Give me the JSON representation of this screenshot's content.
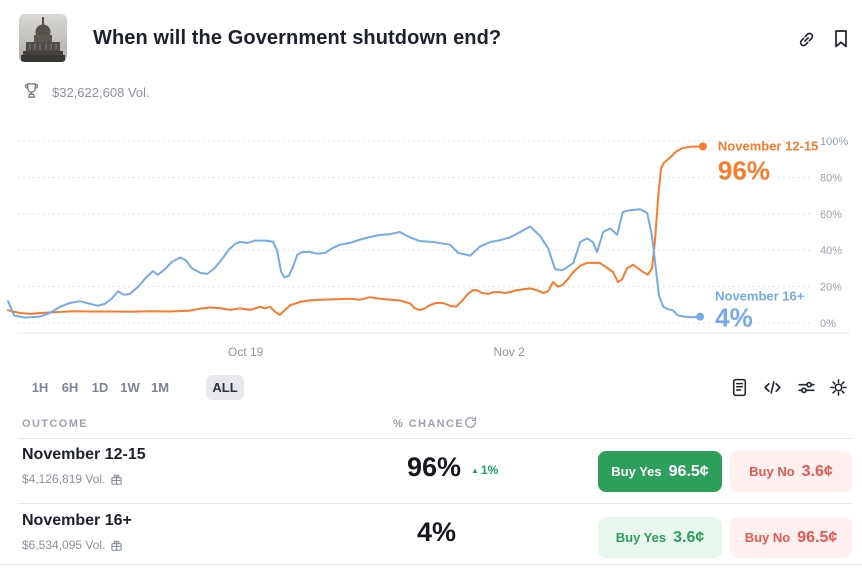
{
  "header": {
    "title": "When will the Government shutdown end?",
    "volume": "$32,622,608 Vol.",
    "market_icon": "us-capitol-thumbnail"
  },
  "chart_data": {
    "type": "line",
    "title": "",
    "xlabel": "",
    "ylabel": "% chance",
    "ylim": [
      0,
      100
    ],
    "grid": "dotted-horizontal",
    "legend_position": "line-end-labels-right",
    "yticks": [
      "0%",
      "20%",
      "40%",
      "60%",
      "80%",
      "100%"
    ],
    "xticks": [
      {
        "label": "Oct 19",
        "pos": 34.1
      },
      {
        "label": "Nov 2",
        "pos": 71.9
      }
    ],
    "series": [
      {
        "name": "November 12-15",
        "current": "96%",
        "color": "#f97b2b",
        "points": [
          [
            0,
            7
          ],
          [
            1.7,
            5.5
          ],
          [
            3.2,
            5
          ],
          [
            4.6,
            5.5
          ],
          [
            6.7,
            6
          ],
          [
            9.6,
            6.5
          ],
          [
            11.8,
            6.3
          ],
          [
            14.6,
            6.3
          ],
          [
            17.5,
            6.2
          ],
          [
            20.4,
            6.5
          ],
          [
            23.2,
            6.3
          ],
          [
            26.1,
            6.8
          ],
          [
            27.5,
            7.8
          ],
          [
            29,
            8.5
          ],
          [
            30.4,
            8.2
          ],
          [
            31.9,
            7.2
          ],
          [
            33.3,
            8
          ],
          [
            34.7,
            7.2
          ],
          [
            36.2,
            8.9
          ],
          [
            36.9,
            8
          ],
          [
            37.6,
            8.9
          ],
          [
            38.3,
            6.2
          ],
          [
            39,
            4.4
          ],
          [
            39.7,
            7.1
          ],
          [
            40.5,
            9.8
          ],
          [
            41.9,
            11.6
          ],
          [
            43.3,
            12.4
          ],
          [
            44.8,
            12.8
          ],
          [
            46.9,
            13
          ],
          [
            49.1,
            13.3
          ],
          [
            50.5,
            12.8
          ],
          [
            51.9,
            14.2
          ],
          [
            53.4,
            13.3
          ],
          [
            54.8,
            12.8
          ],
          [
            56.2,
            12.4
          ],
          [
            57.7,
            10.7
          ],
          [
            58.4,
            8
          ],
          [
            59.1,
            7.1
          ],
          [
            59.8,
            8
          ],
          [
            60.5,
            9.8
          ],
          [
            61.4,
            11
          ],
          [
            62.4,
            11
          ],
          [
            63.4,
            9.5
          ],
          [
            64.3,
            9
          ],
          [
            65.1,
            12
          ],
          [
            66,
            16
          ],
          [
            66.7,
            18
          ],
          [
            67.3,
            18
          ],
          [
            68,
            16.5
          ],
          [
            68.9,
            16
          ],
          [
            69.7,
            17
          ],
          [
            70.6,
            17
          ],
          [
            71.3,
            16.5
          ],
          [
            72,
            17
          ],
          [
            73,
            18
          ],
          [
            74,
            18.5
          ],
          [
            74.9,
            19
          ],
          [
            75.9,
            18
          ],
          [
            76.8,
            16.5
          ],
          [
            77.5,
            17.5
          ],
          [
            78.2,
            22.5
          ],
          [
            78.9,
            20
          ],
          [
            79.6,
            21
          ],
          [
            80.3,
            24
          ],
          [
            81.1,
            28
          ],
          [
            82.1,
            31.5
          ],
          [
            83.1,
            33
          ],
          [
            84.2,
            33
          ],
          [
            84.9,
            33
          ],
          [
            85.9,
            30.5
          ],
          [
            86.8,
            28
          ],
          [
            87.5,
            22.5
          ],
          [
            88.1,
            24
          ],
          [
            88.8,
            30
          ],
          [
            89.7,
            32
          ],
          [
            90.4,
            30
          ],
          [
            91.1,
            28
          ],
          [
            91.8,
            26.5
          ],
          [
            92.4,
            30
          ],
          [
            92.8,
            44
          ],
          [
            93.3,
            70
          ],
          [
            93.7,
            85
          ],
          [
            94.1,
            88
          ],
          [
            94.7,
            90
          ],
          [
            95.3,
            92
          ],
          [
            95.8,
            94
          ],
          [
            96.7,
            96
          ],
          [
            97.8,
            96.8
          ],
          [
            99.7,
            97
          ]
        ]
      },
      {
        "name": "November 16+",
        "current": "4%",
        "color": "#77aae8",
        "points": [
          [
            0,
            12
          ],
          [
            0.9,
            4
          ],
          [
            2.4,
            3
          ],
          [
            4.6,
            3.5
          ],
          [
            6,
            5.5
          ],
          [
            7.5,
            9
          ],
          [
            8.9,
            11
          ],
          [
            10.3,
            12
          ],
          [
            11.8,
            10.5
          ],
          [
            12.9,
            9.5
          ],
          [
            13.9,
            10.5
          ],
          [
            14.9,
            13.5
          ],
          [
            15.8,
            17.5
          ],
          [
            16.6,
            15.5
          ],
          [
            17.5,
            16
          ],
          [
            18.7,
            20
          ],
          [
            19.8,
            25
          ],
          [
            20.8,
            28.5
          ],
          [
            21.5,
            26.5
          ],
          [
            22.5,
            29.5
          ],
          [
            23.5,
            33.5
          ],
          [
            24.7,
            36
          ],
          [
            25.5,
            34.5
          ],
          [
            26.4,
            30
          ],
          [
            27.6,
            27.5
          ],
          [
            28.6,
            27
          ],
          [
            29.6,
            30
          ],
          [
            30.6,
            34.5
          ],
          [
            31.6,
            40
          ],
          [
            32.6,
            43.5
          ],
          [
            33.3,
            44.5
          ],
          [
            34.4,
            44
          ],
          [
            35.4,
            45.3
          ],
          [
            36.9,
            45.3
          ],
          [
            38,
            44.7
          ],
          [
            38.6,
            40
          ],
          [
            39.2,
            28
          ],
          [
            39.7,
            25
          ],
          [
            40.3,
            26
          ],
          [
            40.9,
            31
          ],
          [
            41.5,
            37.5
          ],
          [
            42.2,
            39
          ],
          [
            43.3,
            39
          ],
          [
            44.5,
            38
          ],
          [
            45.5,
            38.5
          ],
          [
            46.5,
            41
          ],
          [
            47.6,
            43
          ],
          [
            49.1,
            44
          ],
          [
            50.5,
            45.8
          ],
          [
            51.9,
            47.2
          ],
          [
            53.4,
            48.4
          ],
          [
            54.8,
            48.8
          ],
          [
            56.2,
            50
          ],
          [
            57.7,
            47
          ],
          [
            59.1,
            45
          ],
          [
            61,
            44.5
          ],
          [
            63.4,
            43
          ],
          [
            64.6,
            38.5
          ],
          [
            66.3,
            37
          ],
          [
            67.7,
            42
          ],
          [
            69.2,
            44.5
          ],
          [
            70.6,
            45.5
          ],
          [
            72,
            47
          ],
          [
            73.5,
            50
          ],
          [
            74.9,
            53
          ],
          [
            76.3,
            48
          ],
          [
            77.5,
            41
          ],
          [
            78.5,
            29.5
          ],
          [
            79.6,
            29
          ],
          [
            81.1,
            33
          ],
          [
            82.1,
            44.5
          ],
          [
            83.1,
            46.5
          ],
          [
            83.9,
            44.5
          ],
          [
            84.5,
            39
          ],
          [
            85.4,
            50
          ],
          [
            86.4,
            52
          ],
          [
            87.4,
            48.5
          ],
          [
            88.2,
            61
          ],
          [
            89.2,
            62
          ],
          [
            90.7,
            62.5
          ],
          [
            91.7,
            60.5
          ],
          [
            92.4,
            48
          ],
          [
            93,
            28
          ],
          [
            93.4,
            15
          ],
          [
            94,
            9
          ],
          [
            94.7,
            7.5
          ],
          [
            95.4,
            7
          ],
          [
            96.1,
            4.2
          ],
          [
            97.1,
            3.4
          ],
          [
            98.3,
            3.2
          ],
          [
            99.3,
            3.5
          ]
        ]
      }
    ]
  },
  "timeframes": {
    "options": [
      "1H",
      "6H",
      "1D",
      "1W",
      "1M",
      "ALL"
    ],
    "selected": "ALL"
  },
  "chart_tools": [
    "document-icon",
    "embed-code-icon",
    "sliders-icon",
    "gear-icon"
  ],
  "table": {
    "outcome_header": "OUTCOME",
    "chance_header": "% CHANCE",
    "rows": [
      {
        "name": "November 12-15",
        "volume": "$4,126,819 Vol.",
        "chance": "96%",
        "delta_arrow": "▲",
        "delta": "1%",
        "buy_yes_label": "Buy Yes",
        "buy_yes_price": "96.5¢",
        "buy_no_label": "Buy No",
        "buy_no_price": "3.6¢"
      },
      {
        "name": "November 16+",
        "volume": "$6,534,095 Vol.",
        "chance": "4%",
        "buy_yes_label": "Buy Yes",
        "buy_yes_price": "3.6¢",
        "buy_no_label": "Buy No",
        "buy_no_price": "96.5¢"
      }
    ]
  },
  "colors": {
    "orange": "#f97b2b",
    "blue": "#77aae8",
    "green": "#2e9e5b",
    "green_light_bg": "#e9f6ee",
    "red": "#e25a52",
    "red_light_bg": "#fdf0ee",
    "delta_green": "#1da35c"
  }
}
